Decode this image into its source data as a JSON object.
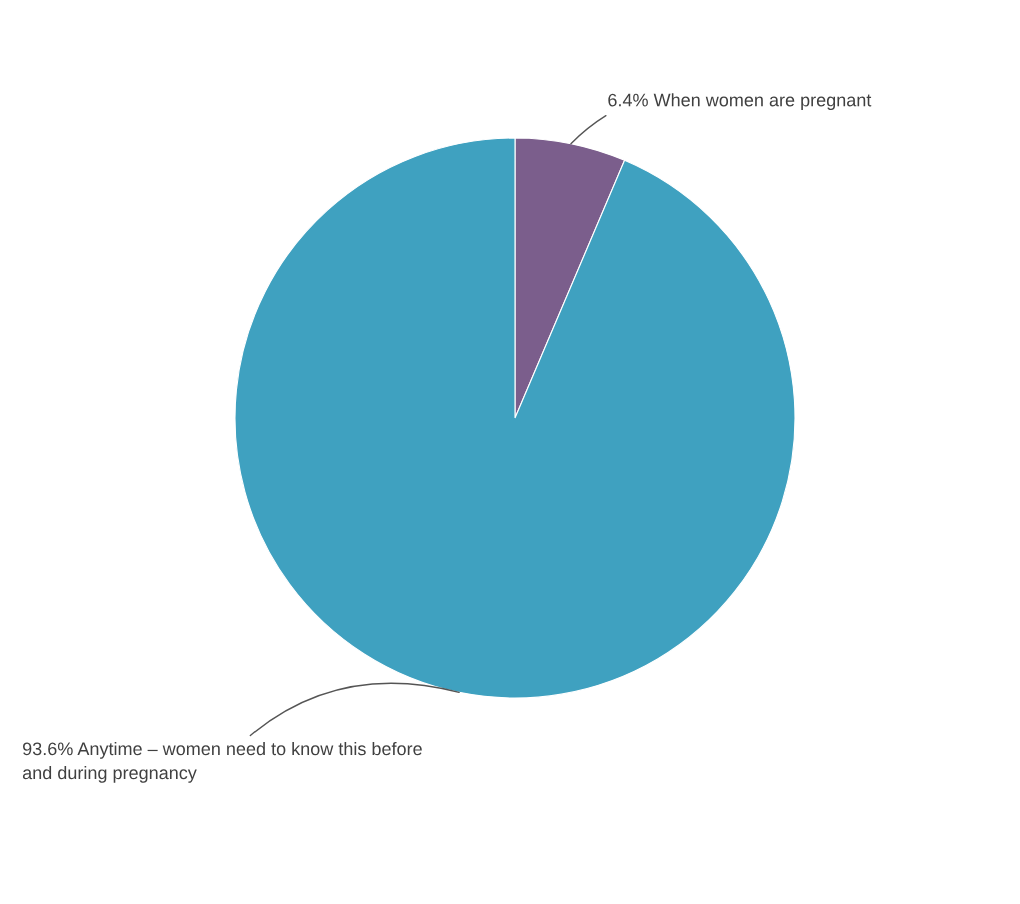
{
  "chart_data": {
    "type": "pie",
    "categories": [
      "When women are pregnant",
      "Anytime – women need to know this before and during pregnancy"
    ],
    "values": [
      6.4,
      93.6
    ],
    "value_labels": [
      "6.4%",
      "93.6%"
    ],
    "colors": [
      "#7b5e8c",
      "#3fa1c0"
    ]
  }
}
